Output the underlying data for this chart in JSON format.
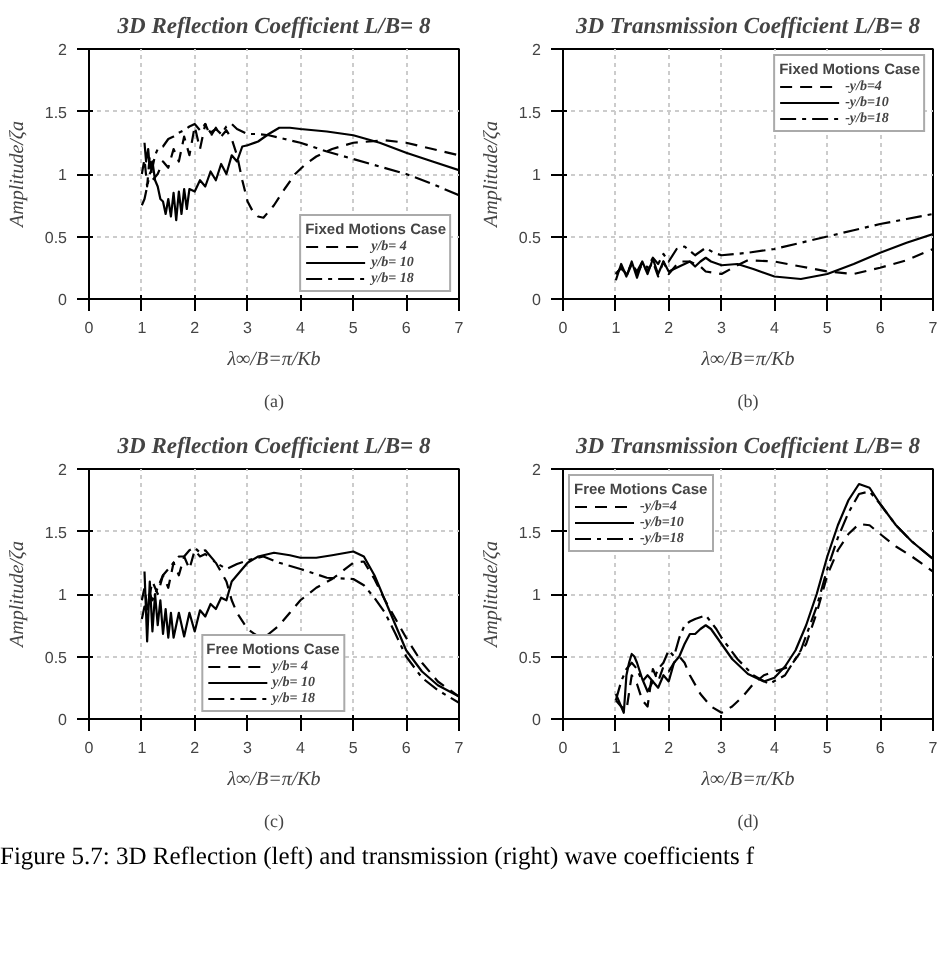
{
  "chart_data": [
    {
      "type": "line",
      "title": "3D Reflection Coefficient L/B= 8",
      "xlabel": "λ∞/B=π/Kb",
      "ylabel": "Amplitude/ζa",
      "legend_title": "Fixed Motions Case",
      "legend": "bottom right",
      "grid": true,
      "xlim": [
        0,
        7
      ],
      "ylim": [
        0,
        2
      ],
      "xticks": [
        0,
        1,
        2,
        3,
        4,
        5,
        6,
        7
      ],
      "yticks": [
        0,
        0.5,
        1,
        1.5,
        2
      ],
      "annotations": [
        "(a)"
      ],
      "series": [
        {
          "name": "y/b= 4",
          "color": "#000000",
          "line_style": "dashed",
          "x": [
            1.0,
            1.05,
            1.1,
            1.15,
            1.2,
            1.3,
            1.4,
            1.5,
            1.6,
            1.7,
            1.8,
            1.9,
            2.0,
            2.1,
            2.2,
            2.3,
            2.4,
            2.5,
            2.6,
            2.7,
            2.8,
            2.9,
            3.0,
            3.1,
            3.2,
            3.3,
            3.5,
            3.7,
            3.9,
            4.1,
            4.3,
            4.6,
            5.0,
            5.3,
            5.6,
            6.0,
            6.5,
            7.0
          ],
          "values": [
            1.0,
            1.12,
            0.9,
            1.15,
            0.95,
            1.0,
            1.1,
            1.05,
            1.2,
            1.1,
            1.3,
            1.15,
            1.38,
            1.2,
            1.4,
            1.3,
            1.37,
            1.3,
            1.35,
            1.28,
            1.15,
            0.95,
            0.78,
            0.7,
            0.66,
            0.65,
            0.75,
            0.88,
            1.0,
            1.08,
            1.14,
            1.2,
            1.25,
            1.26,
            1.27,
            1.25,
            1.2,
            1.15
          ]
        },
        {
          "name": "y/b= 10",
          "color": "#000000",
          "line_style": "solid",
          "x": [
            1.05,
            1.08,
            1.12,
            1.15,
            1.2,
            1.25,
            1.3,
            1.35,
            1.4,
            1.45,
            1.5,
            1.55,
            1.6,
            1.65,
            1.7,
            1.75,
            1.8,
            1.85,
            1.9,
            2.0,
            2.1,
            2.2,
            2.3,
            2.4,
            2.5,
            2.6,
            2.7,
            2.8,
            2.9,
            3.0,
            3.2,
            3.4,
            3.6,
            3.8,
            4.0,
            4.5,
            5.0,
            5.5,
            6.0,
            6.5,
            7.0
          ],
          "values": [
            1.25,
            1.1,
            1.2,
            1.05,
            1.1,
            0.95,
            0.9,
            0.8,
            0.78,
            0.68,
            0.8,
            0.66,
            0.85,
            0.63,
            0.86,
            0.68,
            0.88,
            0.72,
            0.88,
            0.86,
            0.95,
            0.9,
            1.02,
            0.95,
            1.08,
            1.0,
            1.15,
            1.1,
            1.22,
            1.23,
            1.26,
            1.32,
            1.37,
            1.37,
            1.36,
            1.34,
            1.31,
            1.25,
            1.17,
            1.1,
            1.03
          ]
        },
        {
          "name": "y/b= 18",
          "color": "#000000",
          "line_style": "dashdot",
          "x": [
            1.0,
            1.05,
            1.1,
            1.15,
            1.2,
            1.25,
            1.3,
            1.4,
            1.5,
            1.6,
            1.7,
            1.8,
            1.9,
            2.0,
            2.1,
            2.2,
            2.3,
            2.4,
            2.5,
            2.6,
            2.7,
            2.8,
            3.0,
            3.2,
            3.4,
            3.7,
            4.0,
            4.5,
            5.0,
            5.5,
            6.0,
            6.5,
            7.0
          ],
          "values": [
            0.75,
            0.8,
            0.9,
            1.0,
            1.05,
            1.15,
            1.2,
            1.22,
            1.28,
            1.3,
            1.33,
            1.35,
            1.38,
            1.4,
            1.35,
            1.4,
            1.33,
            1.36,
            1.32,
            1.38,
            1.4,
            1.36,
            1.32,
            1.32,
            1.31,
            1.28,
            1.25,
            1.18,
            1.12,
            1.06,
            1.0,
            0.92,
            0.83
          ]
        }
      ]
    },
    {
      "type": "line",
      "title": "3D Transmission Coefficient L/B= 8",
      "xlabel": "λ∞/B=π/Kb",
      "ylabel": "Amplitude/ζa",
      "legend_title": "Fixed Motions Case",
      "legend": "top right",
      "grid": true,
      "xlim": [
        0,
        7
      ],
      "ylim": [
        0,
        2
      ],
      "xticks": [
        0,
        1,
        2,
        3,
        4,
        5,
        6,
        7
      ],
      "yticks": [
        0,
        0.5,
        1,
        1.5,
        2
      ],
      "annotations": [
        "(b)"
      ],
      "series": [
        {
          "name": "-y/b=4",
          "color": "#000000",
          "line_style": "dashed",
          "x": [
            1.0,
            1.1,
            1.2,
            1.3,
            1.4,
            1.5,
            1.6,
            1.7,
            1.8,
            1.9,
            2.0,
            2.2,
            2.4,
            2.6,
            2.7,
            3.0,
            3.3,
            3.5,
            4.0,
            4.5,
            5.0,
            5.5,
            6.0,
            6.5,
            7.0
          ],
          "values": [
            0.2,
            0.25,
            0.18,
            0.28,
            0.2,
            0.28,
            0.22,
            0.3,
            0.18,
            0.3,
            0.2,
            0.3,
            0.3,
            0.26,
            0.22,
            0.2,
            0.27,
            0.31,
            0.3,
            0.26,
            0.22,
            0.2,
            0.25,
            0.31,
            0.4
          ]
        },
        {
          "name": "-y/b=10",
          "color": "#000000",
          "line_style": "solid",
          "x": [
            1.0,
            1.1,
            1.2,
            1.3,
            1.4,
            1.5,
            1.6,
            1.7,
            1.8,
            1.9,
            2.0,
            2.2,
            2.4,
            2.5,
            2.6,
            2.7,
            2.8,
            3.0,
            3.3,
            3.6,
            4.0,
            4.5,
            5.0,
            5.5,
            6.0,
            6.5,
            7.0
          ],
          "values": [
            0.15,
            0.28,
            0.18,
            0.3,
            0.17,
            0.3,
            0.2,
            0.32,
            0.2,
            0.3,
            0.22,
            0.26,
            0.3,
            0.26,
            0.3,
            0.33,
            0.3,
            0.27,
            0.28,
            0.24,
            0.18,
            0.16,
            0.2,
            0.28,
            0.37,
            0.45,
            0.52
          ]
        },
        {
          "name": "-y/b=18",
          "color": "#000000",
          "line_style": "dashdot",
          "x": [
            1.0,
            1.1,
            1.2,
            1.3,
            1.4,
            1.5,
            1.6,
            1.7,
            1.8,
            1.9,
            2.0,
            2.15,
            2.3,
            2.5,
            2.7,
            2.85,
            3.0,
            3.5,
            4.0,
            4.5,
            5.0,
            5.5,
            6.0,
            6.5,
            7.0
          ],
          "values": [
            0.2,
            0.25,
            0.2,
            0.28,
            0.22,
            0.3,
            0.25,
            0.33,
            0.28,
            0.36,
            0.3,
            0.4,
            0.42,
            0.35,
            0.41,
            0.37,
            0.35,
            0.37,
            0.4,
            0.45,
            0.5,
            0.55,
            0.6,
            0.64,
            0.68
          ]
        }
      ]
    },
    {
      "type": "line",
      "title": "3D Reflection Coefficient L/B= 8",
      "xlabel": "λ∞/B=π/Kb",
      "ylabel": "Amplitude/ζa",
      "legend_title": "Free Motions Case",
      "legend": "bottom",
      "grid": true,
      "xlim": [
        0,
        7
      ],
      "ylim": [
        0,
        2
      ],
      "xticks": [
        0,
        1,
        2,
        3,
        4,
        5,
        6,
        7
      ],
      "yticks": [
        0,
        0.5,
        1,
        1.5,
        2
      ],
      "annotations": [
        "(c)",
        "Figure 5.7: 3D Reflection (left) and transmission (right) wave coefficients f"
      ],
      "series": [
        {
          "name": "y/b= 4",
          "color": "#000000",
          "line_style": "dashed",
          "x": [
            1.0,
            1.05,
            1.1,
            1.2,
            1.3,
            1.4,
            1.5,
            1.6,
            1.7,
            1.8,
            1.9,
            2.0,
            2.1,
            2.2,
            2.4,
            2.6,
            2.7,
            2.8,
            3.0,
            3.2,
            3.4,
            3.6,
            3.8,
            4.0,
            4.3,
            4.6,
            5.0,
            5.2,
            5.4,
            5.6,
            5.8,
            6.0,
            6.3,
            6.6,
            7.0
          ],
          "values": [
            0.95,
            1.05,
            0.9,
            1.1,
            1.0,
            1.15,
            1.05,
            1.25,
            1.15,
            1.3,
            1.2,
            1.35,
            1.3,
            1.32,
            1.25,
            1.1,
            0.95,
            0.85,
            0.72,
            0.66,
            0.68,
            0.75,
            0.85,
            0.95,
            1.05,
            1.12,
            1.25,
            1.26,
            1.12,
            0.95,
            0.8,
            0.65,
            0.45,
            0.3,
            0.18
          ]
        },
        {
          "name": "y/b= 10",
          "color": "#000000",
          "line_style": "solid",
          "x": [
            1.05,
            1.1,
            1.15,
            1.2,
            1.25,
            1.3,
            1.35,
            1.4,
            1.45,
            1.5,
            1.55,
            1.6,
            1.7,
            1.8,
            1.9,
            2.0,
            2.1,
            2.2,
            2.3,
            2.4,
            2.5,
            2.6,
            2.7,
            2.8,
            3.0,
            3.2,
            3.5,
            3.8,
            4.0,
            4.3,
            4.6,
            5.0,
            5.2,
            5.4,
            5.6,
            5.8,
            6.0,
            6.3,
            6.6,
            7.0
          ],
          "values": [
            1.18,
            0.62,
            1.1,
            0.7,
            1.0,
            0.75,
            0.95,
            0.68,
            0.88,
            0.65,
            0.85,
            0.65,
            0.85,
            0.66,
            0.85,
            0.7,
            0.87,
            0.82,
            0.92,
            0.88,
            0.97,
            0.95,
            1.1,
            1.15,
            1.25,
            1.3,
            1.33,
            1.31,
            1.29,
            1.29,
            1.31,
            1.34,
            1.3,
            1.15,
            0.95,
            0.75,
            0.55,
            0.38,
            0.27,
            0.18
          ]
        },
        {
          "name": "y/b= 18",
          "color": "#000000",
          "line_style": "dashdot",
          "x": [
            1.0,
            1.05,
            1.1,
            1.15,
            1.2,
            1.3,
            1.4,
            1.5,
            1.6,
            1.7,
            1.8,
            1.9,
            2.0,
            2.1,
            2.2,
            2.4,
            2.6,
            2.8,
            3.0,
            3.3,
            3.6,
            4.0,
            4.5,
            5.0,
            5.2,
            5.4,
            5.6,
            5.8,
            6.0,
            6.3,
            6.6,
            7.0
          ],
          "values": [
            0.8,
            0.9,
            0.85,
            1.0,
            0.95,
            1.05,
            1.15,
            1.2,
            1.25,
            1.3,
            1.3,
            1.35,
            1.37,
            1.33,
            1.35,
            1.25,
            1.2,
            1.24,
            1.27,
            1.3,
            1.25,
            1.2,
            1.13,
            1.12,
            1.07,
            0.97,
            0.85,
            0.68,
            0.5,
            0.33,
            0.23,
            0.13
          ]
        }
      ]
    },
    {
      "type": "line",
      "title": "3D Transmission Coefficient L/B= 8",
      "xlabel": "λ∞/B=π/Kb",
      "ylabel": "Amplitude/ζa",
      "legend_title": "Free Motions Case",
      "legend": "top left",
      "grid": true,
      "xlim": [
        0,
        7
      ],
      "ylim": [
        0,
        2
      ],
      "xticks": [
        0,
        1,
        2,
        3,
        4,
        5,
        6,
        7
      ],
      "yticks": [
        0,
        0.5,
        1,
        1.5,
        2
      ],
      "annotations": [
        "(d)"
      ],
      "series": [
        {
          "name": "-y/b=4",
          "color": "#000000",
          "line_style": "dashed",
          "x": [
            1.0,
            1.1,
            1.2,
            1.3,
            1.4,
            1.5,
            1.6,
            1.7,
            1.8,
            1.9,
            2.0,
            2.1,
            2.2,
            2.3,
            2.4,
            2.6,
            2.8,
            3.0,
            3.2,
            3.4,
            3.6,
            3.8,
            4.0,
            4.3,
            4.6,
            4.8,
            5.0,
            5.2,
            5.4,
            5.6,
            5.8,
            6.0,
            6.3,
            6.6,
            7.0
          ],
          "values": [
            0.15,
            0.1,
            0.07,
            0.35,
            0.28,
            0.15,
            0.1,
            0.4,
            0.3,
            0.42,
            0.38,
            0.45,
            0.5,
            0.45,
            0.35,
            0.2,
            0.1,
            0.05,
            0.1,
            0.18,
            0.28,
            0.35,
            0.38,
            0.42,
            0.6,
            0.85,
            1.15,
            1.35,
            1.48,
            1.56,
            1.55,
            1.48,
            1.38,
            1.3,
            1.18
          ]
        },
        {
          "name": "-y/b=10",
          "color": "#000000",
          "line_style": "solid",
          "x": [
            1.0,
            1.1,
            1.15,
            1.2,
            1.25,
            1.3,
            1.35,
            1.4,
            1.5,
            1.6,
            1.7,
            1.8,
            1.9,
            2.0,
            2.1,
            2.2,
            2.3,
            2.4,
            2.5,
            2.6,
            2.7,
            2.8,
            3.0,
            3.2,
            3.5,
            3.8,
            4.0,
            4.2,
            4.4,
            4.6,
            4.8,
            5.0,
            5.2,
            5.4,
            5.6,
            5.8,
            6.0,
            6.3,
            6.6,
            7.0
          ],
          "values": [
            0.2,
            0.1,
            0.05,
            0.35,
            0.45,
            0.52,
            0.5,
            0.45,
            0.32,
            0.22,
            0.3,
            0.25,
            0.35,
            0.3,
            0.45,
            0.5,
            0.6,
            0.68,
            0.68,
            0.72,
            0.75,
            0.72,
            0.6,
            0.48,
            0.36,
            0.3,
            0.33,
            0.42,
            0.55,
            0.75,
            1.0,
            1.3,
            1.55,
            1.75,
            1.88,
            1.85,
            1.72,
            1.55,
            1.42,
            1.28
          ]
        },
        {
          "name": "-y/b=18",
          "color": "#000000",
          "line_style": "dashdot",
          "x": [
            1.0,
            1.1,
            1.2,
            1.3,
            1.4,
            1.5,
            1.6,
            1.7,
            1.8,
            1.9,
            2.0,
            2.1,
            2.2,
            2.3,
            2.4,
            2.5,
            2.7,
            2.9,
            3.0,
            3.3,
            3.6,
            3.9,
            4.2,
            4.5,
            4.8,
            5.0,
            5.2,
            5.4,
            5.6,
            5.8,
            6.0,
            6.3,
            6.6,
            7.0
          ],
          "values": [
            0.15,
            0.3,
            0.4,
            0.45,
            0.4,
            0.3,
            0.35,
            0.3,
            0.4,
            0.45,
            0.55,
            0.5,
            0.65,
            0.75,
            0.78,
            0.8,
            0.83,
            0.72,
            0.65,
            0.48,
            0.35,
            0.28,
            0.35,
            0.55,
            0.9,
            1.2,
            1.45,
            1.65,
            1.8,
            1.82,
            1.72,
            1.55,
            1.42,
            1.28
          ]
        }
      ]
    }
  ]
}
